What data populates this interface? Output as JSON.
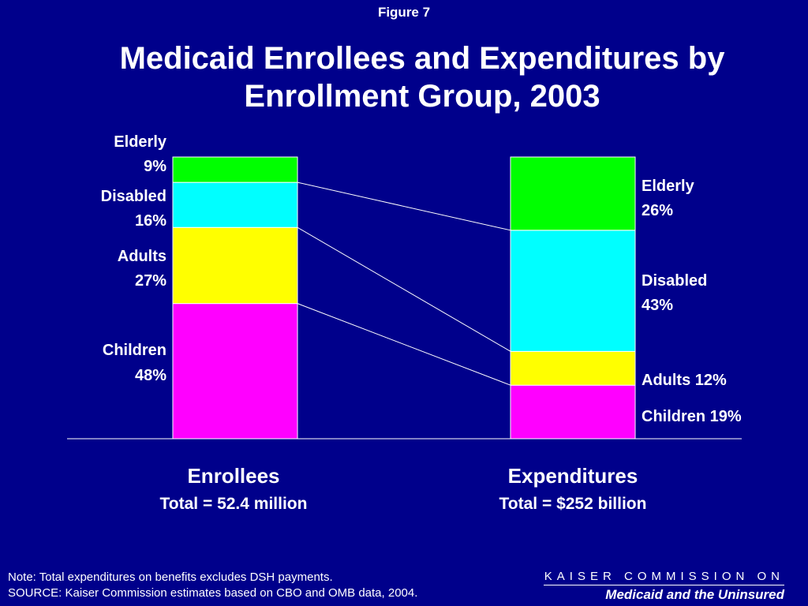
{
  "figure_label": "Figure 7",
  "title": "Medicaid Enrollees and Expenditures by Enrollment Group, 2003",
  "chart_data": {
    "type": "bar",
    "stacked": true,
    "normalized_percent": true,
    "categories": [
      "Enrollees",
      "Expenditures"
    ],
    "category_totals": [
      "Total = 52.4 million",
      "Total = $252 billion"
    ],
    "series": [
      {
        "name": "Children",
        "values": [
          48,
          19
        ],
        "color": "#FF00FF"
      },
      {
        "name": "Adults",
        "values": [
          27,
          12
        ],
        "color": "#FFFF00"
      },
      {
        "name": "Disabled",
        "values": [
          16,
          43
        ],
        "color": "#00FFFF"
      },
      {
        "name": "Elderly",
        "values": [
          9,
          26
        ],
        "color": "#00FF00"
      }
    ],
    "segment_labels": {
      "Enrollees": [
        {
          "series": "Children",
          "name": "Children",
          "value": "48%"
        },
        {
          "series": "Adults",
          "name": "Adults",
          "value": "27%"
        },
        {
          "series": "Disabled",
          "name": "Disabled",
          "value": "16%"
        },
        {
          "series": "Elderly",
          "name": "Elderly",
          "value": "9%"
        }
      ],
      "Expenditures": [
        {
          "series": "Children",
          "text": "Children 19%"
        },
        {
          "series": "Adults",
          "text": "Adults 12%"
        },
        {
          "series": "Disabled",
          "name": "Disabled",
          "value": "43%"
        },
        {
          "series": "Elderly",
          "name": "Elderly",
          "value": "26%"
        }
      ]
    },
    "connector_lines": true,
    "ylim": [
      0,
      100
    ],
    "grid": false,
    "legend": "none"
  },
  "footer": {
    "note": "Note: Total expenditures on benefits excludes DSH payments.",
    "source": "SOURCE: Kaiser Commission estimates based on CBO and OMB data, 2004.",
    "brand_top": "KAISER COMMISSION ON",
    "brand_bottom": "Medicaid and the Uninsured"
  },
  "colors": {
    "background": "#00008B",
    "text": "#FFFFFF"
  }
}
